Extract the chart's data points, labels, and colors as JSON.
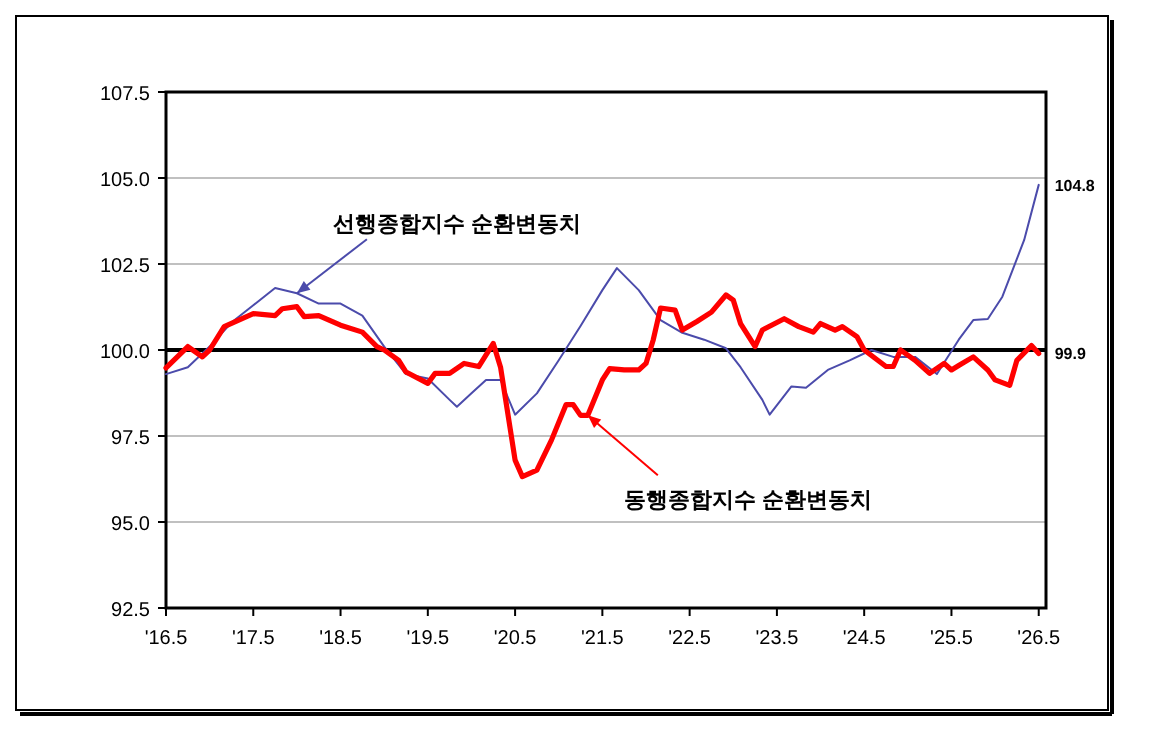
{
  "chart_data": {
    "type": "line",
    "xlim": [
      "2016-05",
      "2026-06"
    ],
    "ylim": [
      92.5,
      107.5
    ],
    "xticks": [
      {
        "value": "2016-05",
        "label": "'16.5"
      },
      {
        "value": "2017-05",
        "label": "'17.5"
      },
      {
        "value": "2018-05",
        "label": "'18.5"
      },
      {
        "value": "2019-05",
        "label": "'19.5"
      },
      {
        "value": "2020-05",
        "label": "'20.5"
      },
      {
        "value": "2021-05",
        "label": "'21.5"
      },
      {
        "value": "2022-05",
        "label": "'22.5"
      },
      {
        "value": "2023-05",
        "label": "'23.5"
      },
      {
        "value": "2024-05",
        "label": "'24.5"
      },
      {
        "value": "2025-05",
        "label": "'25.5"
      },
      {
        "value": "2026-05",
        "label": "'26.5"
      }
    ],
    "yticks": [
      92.5,
      {
        "value": 95,
        "label": "95.0"
      },
      97.5,
      {
        "value": 100,
        "label": "100.0"
      },
      102.5,
      {
        "value": 105,
        "label": "105.0"
      },
      107.5
    ],
    "grid": "y",
    "marker": "none",
    "line_style": "solid",
    "ref_lines": [
      {
        "axis": "y",
        "value": 100,
        "label": null,
        "color": "#000000"
      }
    ],
    "annotations": [
      {
        "text": "선행종합지수 순환변동치",
        "x": "2017-11",
        "y": 101.65
      },
      {
        "text": "동행종합지수 순환변동치",
        "x": "2021-03",
        "y": 98.1
      }
    ],
    "series": [
      {
        "color": "#4b4bab",
        "x": [
          "2016-05",
          "2016-08",
          "2016-11",
          "2017-02",
          "2017-05",
          "2017-08",
          "2017-11",
          "2018-02",
          "2018-05",
          "2018-08",
          "2018-11",
          "2019-02",
          "2019-05",
          "2019-08",
          "2019-09",
          "2019-11",
          "2020-01",
          "2020-03",
          "2020-05",
          "2020-08",
          "2020-11",
          "2021-02",
          "2021-05",
          "2021-07",
          "2021-10",
          "2022-01",
          "2022-04",
          "2022-07",
          "2022-10",
          "2022-12",
          "2023-03",
          "2023-04",
          "2023-07",
          "2023-09",
          "2023-12",
          "2024-03",
          "2024-06",
          "2024-09",
          "2024-12",
          "2025-03",
          "2025-06",
          "2025-08",
          "2025-10",
          "2025-12",
          "2026-03",
          "2026-05"
        ],
        "values": [
          99.3,
          99.5,
          100.1,
          100.8,
          101.3,
          101.8,
          101.65,
          101.35,
          101.35,
          101.0,
          100.1,
          99.3,
          99.17,
          98.55,
          98.35,
          98.74,
          99.13,
          99.13,
          98.12,
          98.74,
          99.7,
          100.7,
          101.74,
          102.38,
          101.74,
          100.87,
          100.5,
          100.3,
          100.05,
          99.5,
          98.55,
          98.12,
          98.94,
          98.9,
          99.42,
          99.7,
          100.0,
          99.8,
          99.8,
          99.3,
          100.3,
          100.87,
          100.9,
          101.55,
          103.2,
          104.8
        ],
        "value_labels": [
          null,
          null,
          null,
          null,
          null,
          null,
          null,
          null,
          null,
          null,
          null,
          null,
          null,
          null,
          null,
          null,
          null,
          null,
          null,
          null,
          null,
          null,
          null,
          null,
          null,
          null,
          null,
          null,
          null,
          null,
          null,
          null,
          null,
          null,
          null,
          null,
          null,
          null,
          null,
          null,
          null,
          null,
          null,
          null,
          null,
          "104.8"
        ]
      },
      {
        "color": "#ff0000",
        "x": [
          "2016-05",
          "2016-08",
          "2016-10",
          "2016-11",
          "2017-01",
          "2017-05",
          "2017-08",
          "2017-09",
          "2017-11",
          "2017-12",
          "2018-02",
          "2018-05",
          "2018-08",
          "2018-10",
          "2018-11",
          "2019-01",
          "2019-02",
          "2019-05",
          "2019-06",
          "2019-08",
          "2019-10",
          "2019-12",
          "2020-02",
          "2020-03",
          "2020-05",
          "2020-06",
          "2020-08",
          "2020-10",
          "2020-12",
          "2021-01",
          "2021-02",
          "2021-03",
          "2021-05",
          "2021-06",
          "2021-08",
          "2021-10",
          "2021-11",
          "2021-12",
          "2022-01",
          "2022-03",
          "2022-04",
          "2022-06",
          "2022-08",
          "2022-10",
          "2022-11",
          "2022-12",
          "2023-02",
          "2023-03",
          "2023-06",
          "2023-08",
          "2023-10",
          "2023-11",
          "2024-01",
          "2024-02",
          "2024-04",
          "2024-05",
          "2024-08",
          "2024-09",
          "2024-10",
          "2024-12",
          "2025-02",
          "2025-04",
          "2025-05",
          "2025-06",
          "2025-08",
          "2025-10",
          "2025-11",
          "2026-01",
          "2026-02",
          "2026-04",
          "2026-05"
        ],
        "values": [
          99.48,
          100.1,
          99.8,
          100.0,
          100.68,
          101.06,
          101.0,
          101.2,
          101.26,
          100.97,
          101.0,
          100.72,
          100.52,
          100.1,
          100.0,
          99.7,
          99.36,
          99.03,
          99.32,
          99.32,
          99.61,
          99.52,
          100.19,
          99.5,
          96.8,
          96.32,
          96.51,
          97.38,
          98.41,
          98.41,
          98.1,
          98.1,
          99.13,
          99.46,
          99.42,
          99.42,
          99.61,
          100.3,
          101.22,
          101.16,
          100.58,
          100.83,
          101.1,
          101.6,
          101.45,
          100.77,
          100.1,
          100.58,
          100.91,
          100.68,
          100.52,
          100.77,
          100.58,
          100.68,
          100.39,
          100.0,
          99.52,
          99.52,
          100.0,
          99.7,
          99.32,
          99.61,
          99.42,
          99.55,
          99.8,
          99.42,
          99.13,
          98.97,
          99.7,
          100.13,
          99.9
        ],
        "value_labels": [
          null,
          null,
          null,
          null,
          null,
          null,
          null,
          null,
          null,
          null,
          null,
          null,
          null,
          null,
          null,
          null,
          null,
          null,
          null,
          null,
          null,
          null,
          null,
          null,
          null,
          null,
          null,
          null,
          null,
          null,
          null,
          null,
          null,
          null,
          null,
          null,
          null,
          null,
          null,
          null,
          null,
          null,
          null,
          null,
          null,
          null,
          null,
          null,
          null,
          null,
          null,
          null,
          null,
          null,
          null,
          null,
          null,
          null,
          null,
          null,
          null,
          null,
          null,
          null,
          null,
          null,
          null,
          null,
          null,
          null,
          "99.9"
        ]
      }
    ]
  }
}
